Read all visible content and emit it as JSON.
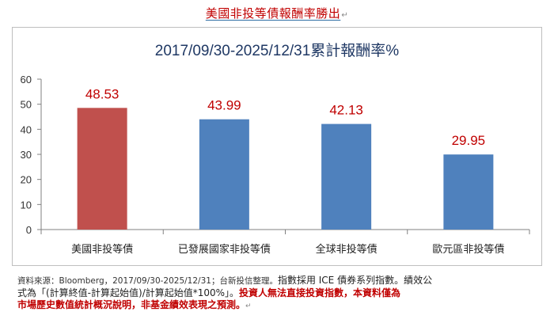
{
  "headline": {
    "text": "美國非投等債報酬率勝出",
    "trailing_mark": "↵"
  },
  "chart_data": {
    "type": "bar",
    "title": "2017/09/30-2025/12/31累計報酬率%",
    "categories": [
      "美國非投等債",
      "已發展國家非投等債",
      "全球非投等債",
      "歐元區非投等債"
    ],
    "values": [
      48.53,
      43.99,
      42.13,
      29.95
    ],
    "value_labels": [
      "48.53",
      "43.99",
      "42.13",
      "29.95"
    ],
    "bar_colors": [
      "#c0504d",
      "#4f81bd",
      "#4f81bd",
      "#4f81bd"
    ],
    "label_color": "#c00000",
    "yticks": [
      "0",
      "10",
      "20",
      "30",
      "40",
      "50",
      "60"
    ],
    "ylim": [
      0,
      60
    ],
    "xlabel": "",
    "ylabel": "",
    "grid": false,
    "legend": "none"
  },
  "footnote": {
    "source": "資料來源：Bloomberg，2017/09/30-2025/12/31；台新投信整理。",
    "index_note_1": "指數採用 ICE 債券系列指數。績效公",
    "index_note_2": "式為「(計算終值-計算起始值)/計算起始值*100%」。",
    "warning_1": "投資人無法直接投資指數，本資料僅為",
    "warning_2": "市場歷史數值統計概況說明，非基金績效表現之預測。",
    "trailing_mark": "↵"
  }
}
